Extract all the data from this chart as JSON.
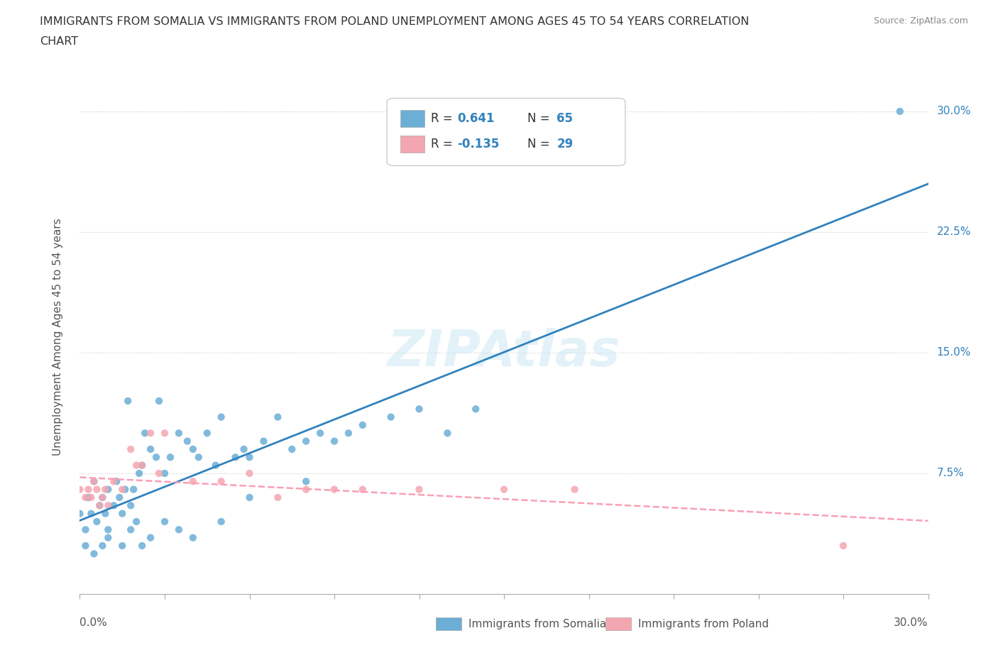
{
  "title_line1": "IMMIGRANTS FROM SOMALIA VS IMMIGRANTS FROM POLAND UNEMPLOYMENT AMONG AGES 45 TO 54 YEARS CORRELATION",
  "title_line2": "CHART",
  "source": "Source: ZipAtlas.com",
  "ylabel": "Unemployment Among Ages 45 to 54 years",
  "yticks_labels": [
    "7.5%",
    "15.0%",
    "22.5%",
    "30.0%"
  ],
  "ytick_vals": [
    0.075,
    0.15,
    0.225,
    0.3
  ],
  "xlim": [
    0.0,
    0.3
  ],
  "ylim": [
    0.0,
    0.32
  ],
  "somalia_color": "#6baed6",
  "poland_color": "#f4a6b0",
  "somalia_line_color": "#3182bd",
  "poland_line_color": "#fa9fb5",
  "legend_r_somalia": "0.641",
  "legend_n_somalia": "65",
  "legend_r_poland": "-0.135",
  "legend_n_poland": "29",
  "somalia_x": [
    0.0,
    0.002,
    0.003,
    0.004,
    0.005,
    0.006,
    0.007,
    0.008,
    0.009,
    0.01,
    0.01,
    0.012,
    0.013,
    0.014,
    0.015,
    0.016,
    0.017,
    0.018,
    0.019,
    0.02,
    0.021,
    0.022,
    0.023,
    0.025,
    0.027,
    0.028,
    0.03,
    0.032,
    0.035,
    0.038,
    0.04,
    0.042,
    0.045,
    0.048,
    0.05,
    0.055,
    0.058,
    0.06,
    0.065,
    0.07,
    0.075,
    0.08,
    0.085,
    0.09,
    0.095,
    0.1,
    0.11,
    0.12,
    0.13,
    0.14,
    0.002,
    0.005,
    0.008,
    0.01,
    0.015,
    0.018,
    0.022,
    0.025,
    0.03,
    0.035,
    0.04,
    0.05,
    0.06,
    0.08,
    0.29
  ],
  "somalia_y": [
    0.05,
    0.04,
    0.06,
    0.05,
    0.07,
    0.045,
    0.055,
    0.06,
    0.05,
    0.065,
    0.04,
    0.055,
    0.07,
    0.06,
    0.05,
    0.065,
    0.12,
    0.055,
    0.065,
    0.045,
    0.075,
    0.08,
    0.1,
    0.09,
    0.085,
    0.12,
    0.075,
    0.085,
    0.1,
    0.095,
    0.09,
    0.085,
    0.1,
    0.08,
    0.11,
    0.085,
    0.09,
    0.085,
    0.095,
    0.11,
    0.09,
    0.095,
    0.1,
    0.095,
    0.1,
    0.105,
    0.11,
    0.115,
    0.1,
    0.115,
    0.03,
    0.025,
    0.03,
    0.035,
    0.03,
    0.04,
    0.03,
    0.035,
    0.045,
    0.04,
    0.035,
    0.045,
    0.06,
    0.07,
    0.3
  ],
  "poland_x": [
    0.0,
    0.002,
    0.003,
    0.004,
    0.005,
    0.006,
    0.007,
    0.008,
    0.009,
    0.01,
    0.012,
    0.015,
    0.018,
    0.02,
    0.022,
    0.025,
    0.028,
    0.03,
    0.04,
    0.05,
    0.06,
    0.07,
    0.08,
    0.09,
    0.1,
    0.12,
    0.15,
    0.175,
    0.27
  ],
  "poland_y": [
    0.065,
    0.06,
    0.065,
    0.06,
    0.07,
    0.065,
    0.055,
    0.06,
    0.065,
    0.055,
    0.07,
    0.065,
    0.09,
    0.08,
    0.08,
    0.1,
    0.075,
    0.1,
    0.07,
    0.07,
    0.075,
    0.06,
    0.065,
    0.065,
    0.065,
    0.065,
    0.065,
    0.065,
    0.03
  ]
}
